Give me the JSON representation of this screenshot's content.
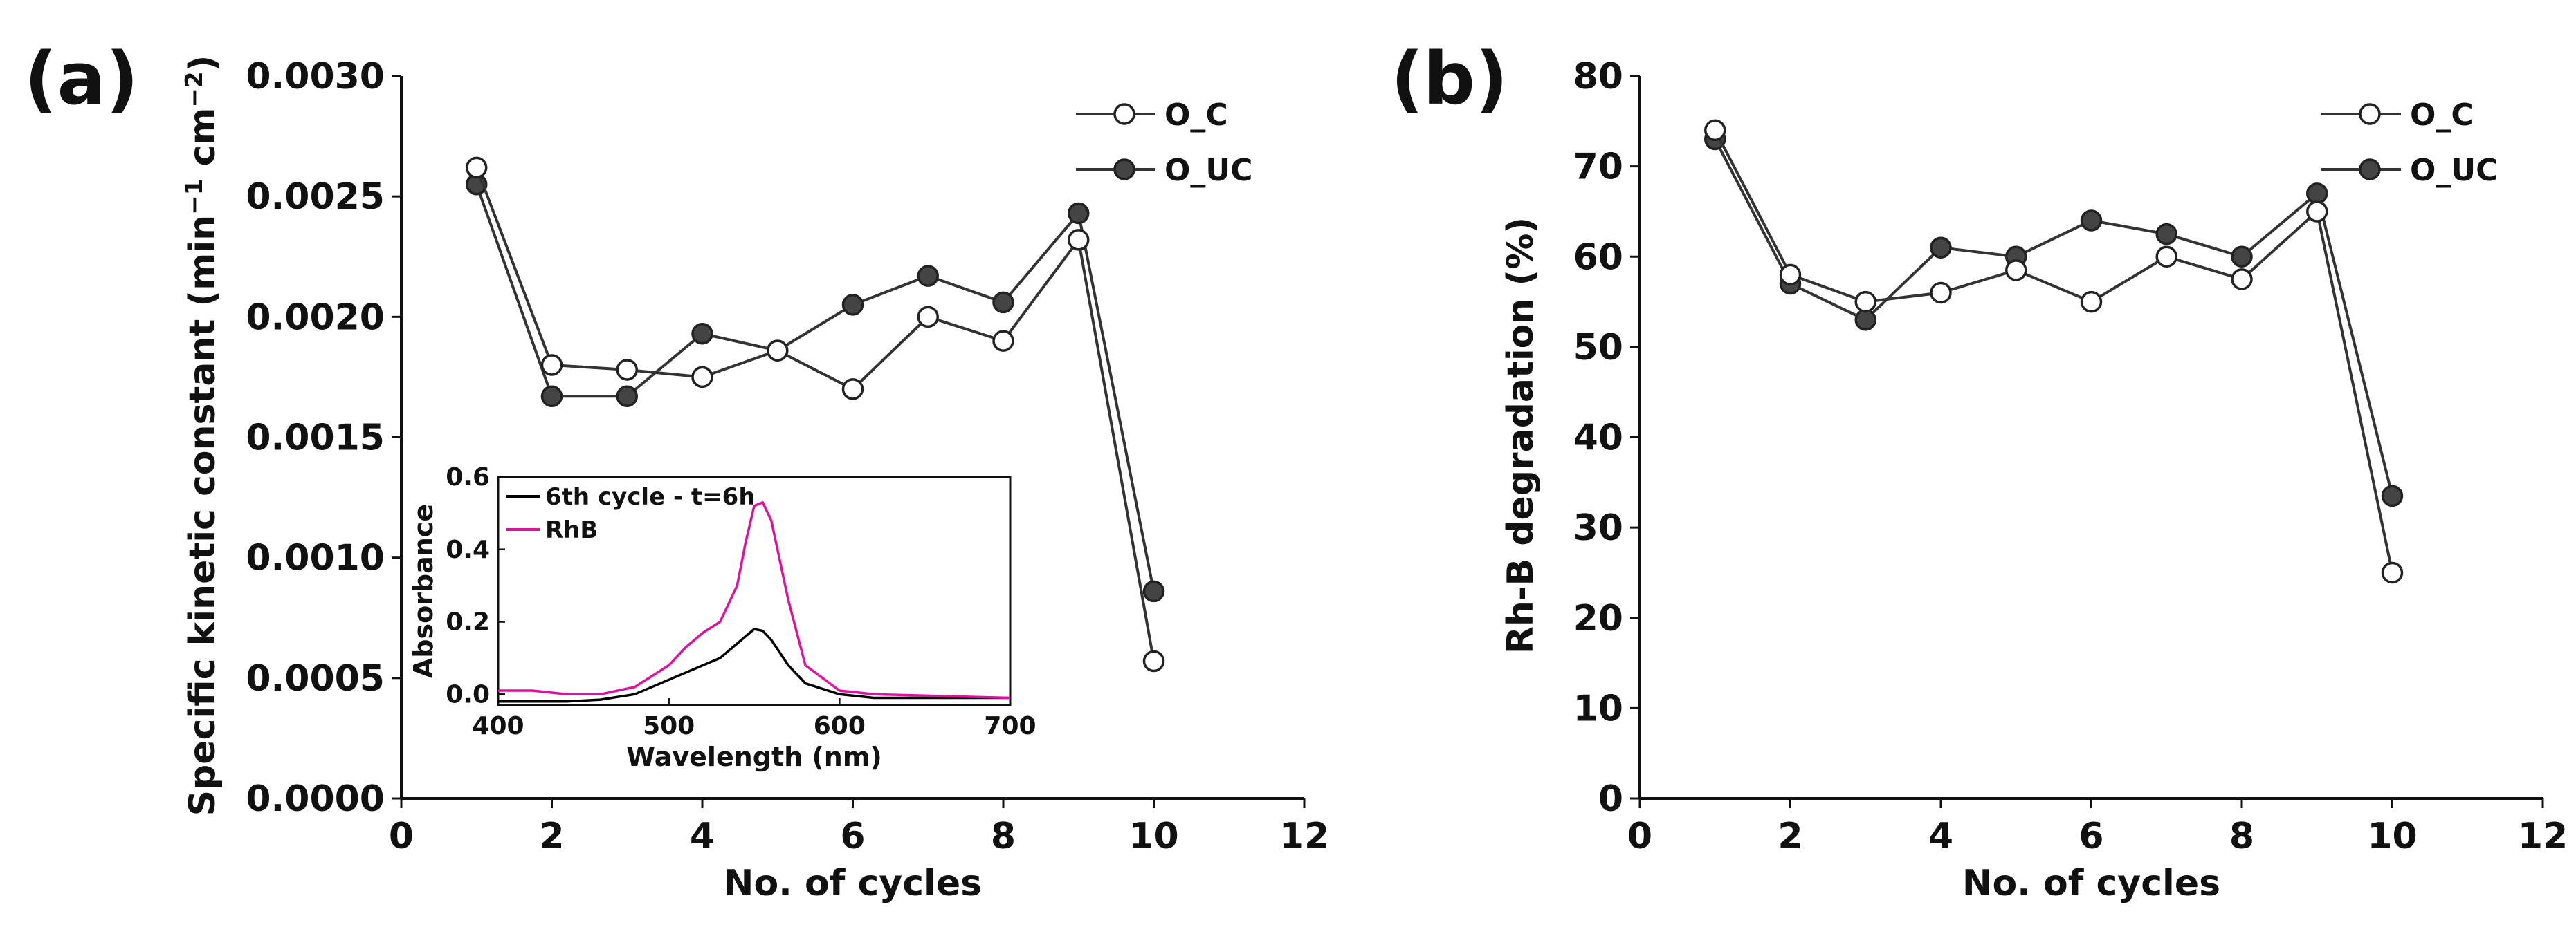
{
  "chart_data": [
    {
      "panel": "(a)",
      "type": "line",
      "xlabel": "No. of cycles",
      "ylabel_main": "Specific kinetic constant (min",
      "ylabel_sup1": "−1",
      "ylabel_mid": " cm",
      "ylabel_sup2": "−2",
      "ylabel_end": ")",
      "xlim": [
        0,
        12
      ],
      "ylim": [
        0,
        0.003
      ],
      "xticks": [
        0,
        2,
        4,
        6,
        8,
        10,
        12
      ],
      "yticks": [
        0.0,
        0.0005,
        0.001,
        0.0015,
        0.002,
        0.0025,
        0.003
      ],
      "ytick_labels": [
        "0.0000",
        "0.0005",
        "0.0010",
        "0.0015",
        "0.0020",
        "0.0025",
        "0.0030"
      ],
      "legend_position": "top-right",
      "series": [
        {
          "name": "O_C",
          "marker": "open-circle",
          "x": [
            1,
            2,
            3,
            4,
            5,
            6,
            7,
            8,
            9,
            10
          ],
          "y": [
            0.00262,
            0.0018,
            0.00178,
            0.00175,
            0.00186,
            0.0017,
            0.002,
            0.0019,
            0.00232,
            0.00057
          ]
        },
        {
          "name": "O_UC",
          "marker": "filled-circle",
          "x": [
            1,
            2,
            3,
            4,
            5,
            6,
            7,
            8,
            9,
            10
          ],
          "y": [
            0.00255,
            0.00167,
            0.00167,
            0.00193,
            0.00186,
            0.00205,
            0.00217,
            0.00206,
            0.00243,
            0.00086
          ]
        }
      ],
      "inset": {
        "type": "line",
        "xlabel": "Wavelength (nm)",
        "ylabel": "Absorbance",
        "xlim": [
          400,
          700
        ],
        "ylim": [
          -0.03,
          0.6
        ],
        "xticks": [
          400,
          500,
          600,
          700
        ],
        "yticks": [
          0.0,
          0.2,
          0.4,
          0.6
        ],
        "ytick_labels": [
          "0.0",
          "0.2",
          "0.4",
          "0.6"
        ],
        "legend_position": "top-left",
        "series": [
          {
            "name": "6th cycle - t=6h",
            "color": "#000000",
            "x": [
              400,
              420,
              440,
              460,
              480,
              500,
              510,
              520,
              530,
              540,
              550,
              555,
              560,
              570,
              580,
              600,
              620,
              700
            ],
            "y": [
              -0.02,
              -0.02,
              -0.02,
              -0.015,
              0.0,
              0.04,
              0.06,
              0.08,
              0.1,
              0.14,
              0.18,
              0.175,
              0.15,
              0.08,
              0.03,
              0.0,
              -0.01,
              -0.01
            ]
          },
          {
            "name": "RhB",
            "color": "#e0119e",
            "x": [
              400,
              420,
              440,
              460,
              480,
              500,
              510,
              520,
              530,
              540,
              545,
              550,
              555,
              560,
              570,
              580,
              600,
              620,
              700
            ],
            "y": [
              0.01,
              0.01,
              0.0,
              0.0,
              0.02,
              0.08,
              0.13,
              0.17,
              0.2,
              0.3,
              0.42,
              0.52,
              0.53,
              0.48,
              0.26,
              0.08,
              0.01,
              0.0,
              -0.01
            ]
          }
        ]
      }
    },
    {
      "panel": "(b)",
      "type": "line",
      "xlabel": "No. of cycles",
      "ylabel": "Rh-B degradation (%)",
      "xlim": [
        0,
        12
      ],
      "ylim": [
        0,
        80
      ],
      "xticks": [
        0,
        2,
        4,
        6,
        8,
        10,
        12
      ],
      "yticks": [
        0,
        10,
        20,
        30,
        40,
        50,
        60,
        70,
        80
      ],
      "ytick_labels": [
        "0",
        "10",
        "20",
        "30",
        "40",
        "50",
        "60",
        "70",
        "80"
      ],
      "legend_position": "top-right",
      "series": [
        {
          "name": "O_C",
          "marker": "open-circle",
          "x": [
            1,
            2,
            3,
            4,
            5,
            6,
            7,
            8,
            9,
            10
          ],
          "y": [
            74,
            58,
            55,
            56,
            58.5,
            55,
            60,
            57.5,
            65,
            25
          ]
        },
        {
          "name": "O_UC",
          "marker": "filled-circle",
          "x": [
            1,
            2,
            3,
            4,
            5,
            6,
            7,
            8,
            9,
            10
          ],
          "y": [
            73,
            57,
            53,
            61,
            60,
            64,
            62.5,
            60,
            67,
            33.5
          ]
        }
      ]
    }
  ],
  "colors": {
    "axis": "#111111",
    "marker_fill": "#444444",
    "line": "#333333"
  }
}
